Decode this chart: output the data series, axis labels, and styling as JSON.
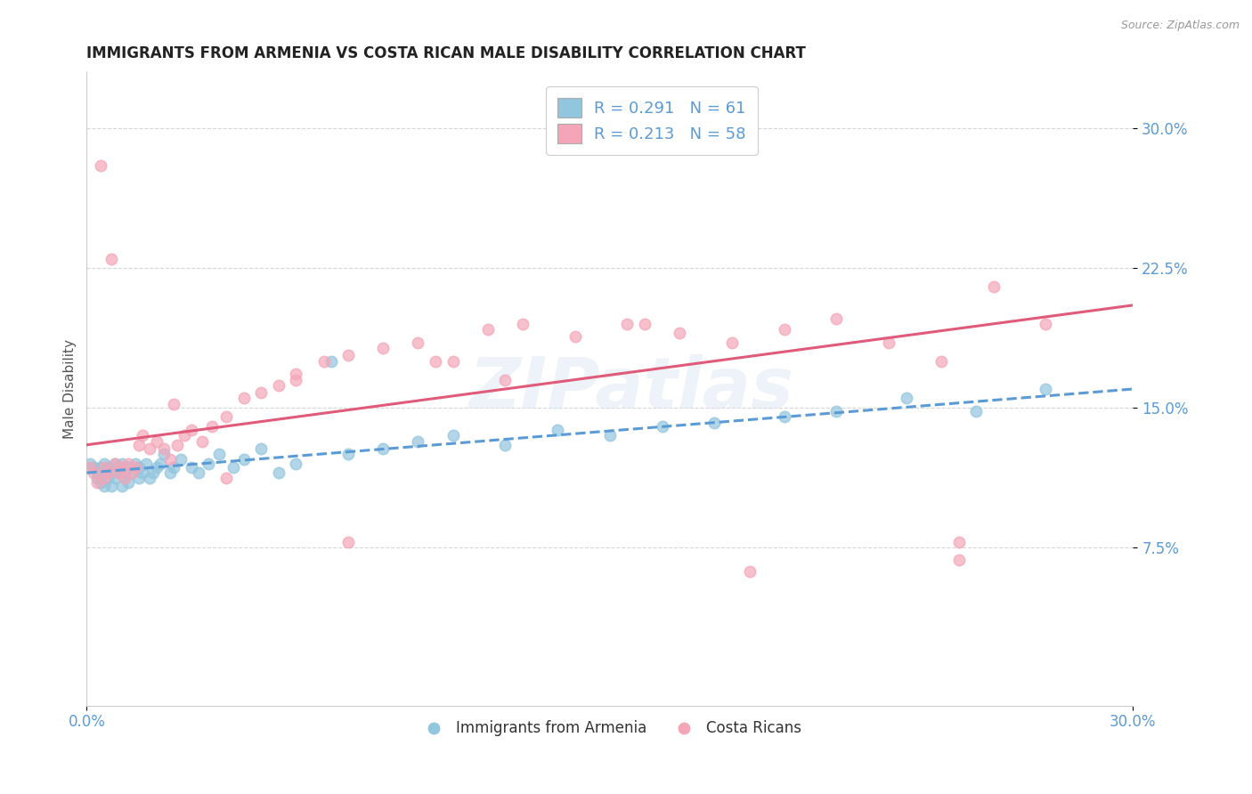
{
  "title": "IMMIGRANTS FROM ARMENIA VS COSTA RICAN MALE DISABILITY CORRELATION CHART",
  "source": "Source: ZipAtlas.com",
  "ylabel": "Male Disability",
  "legend_label_1": "Immigrants from Armenia",
  "legend_label_2": "Costa Ricans",
  "r1": 0.291,
  "n1": 61,
  "r2": 0.213,
  "n2": 58,
  "color_blue": "#92c5de",
  "color_pink": "#f4a6b8",
  "trend_blue": "#5b9bd5",
  "trend_pink": "#e05a7a",
  "axis_label_color": "#5b9bd5",
  "title_color": "#222222",
  "ytick_labels": [
    "7.5%",
    "15.0%",
    "22.5%",
    "30.0%"
  ],
  "ytick_values": [
    0.075,
    0.15,
    0.225,
    0.3
  ],
  "xlim": [
    0.0,
    0.3
  ],
  "ylim": [
    -0.01,
    0.33
  ],
  "blue_scatter_x": [
    0.001,
    0.002,
    0.003,
    0.003,
    0.004,
    0.004,
    0.005,
    0.005,
    0.005,
    0.006,
    0.006,
    0.007,
    0.007,
    0.008,
    0.008,
    0.009,
    0.009,
    0.01,
    0.01,
    0.011,
    0.011,
    0.012,
    0.012,
    0.013,
    0.014,
    0.015,
    0.015,
    0.016,
    0.017,
    0.018,
    0.019,
    0.02,
    0.021,
    0.022,
    0.024,
    0.025,
    0.027,
    0.03,
    0.032,
    0.035,
    0.038,
    0.042,
    0.045,
    0.05,
    0.055,
    0.06,
    0.07,
    0.075,
    0.085,
    0.095,
    0.105,
    0.12,
    0.135,
    0.15,
    0.165,
    0.18,
    0.2,
    0.215,
    0.235,
    0.255,
    0.275
  ],
  "blue_scatter_y": [
    0.12,
    0.118,
    0.115,
    0.112,
    0.118,
    0.11,
    0.115,
    0.108,
    0.12,
    0.112,
    0.118,
    0.115,
    0.108,
    0.12,
    0.112,
    0.115,
    0.118,
    0.12,
    0.108,
    0.115,
    0.112,
    0.118,
    0.11,
    0.115,
    0.12,
    0.112,
    0.118,
    0.115,
    0.12,
    0.112,
    0.115,
    0.118,
    0.12,
    0.125,
    0.115,
    0.118,
    0.122,
    0.118,
    0.115,
    0.12,
    0.125,
    0.118,
    0.122,
    0.128,
    0.115,
    0.12,
    0.175,
    0.125,
    0.128,
    0.132,
    0.135,
    0.13,
    0.138,
    0.135,
    0.14,
    0.142,
    0.145,
    0.148,
    0.155,
    0.148,
    0.16
  ],
  "pink_scatter_x": [
    0.001,
    0.002,
    0.003,
    0.004,
    0.005,
    0.005,
    0.006,
    0.007,
    0.008,
    0.009,
    0.01,
    0.011,
    0.012,
    0.013,
    0.014,
    0.015,
    0.016,
    0.018,
    0.02,
    0.022,
    0.024,
    0.026,
    0.028,
    0.03,
    0.033,
    0.036,
    0.04,
    0.045,
    0.05,
    0.055,
    0.06,
    0.068,
    0.075,
    0.085,
    0.095,
    0.105,
    0.115,
    0.125,
    0.14,
    0.155,
    0.17,
    0.185,
    0.2,
    0.215,
    0.23,
    0.245,
    0.26,
    0.275,
    0.06,
    0.1,
    0.12,
    0.16,
    0.19,
    0.25,
    0.025,
    0.04,
    0.075,
    0.25
  ],
  "pink_scatter_y": [
    0.118,
    0.115,
    0.11,
    0.28,
    0.118,
    0.112,
    0.115,
    0.23,
    0.12,
    0.115,
    0.118,
    0.112,
    0.12,
    0.115,
    0.118,
    0.13,
    0.135,
    0.128,
    0.132,
    0.128,
    0.122,
    0.13,
    0.135,
    0.138,
    0.132,
    0.14,
    0.145,
    0.155,
    0.158,
    0.162,
    0.168,
    0.175,
    0.178,
    0.182,
    0.185,
    0.175,
    0.192,
    0.195,
    0.188,
    0.195,
    0.19,
    0.185,
    0.192,
    0.198,
    0.185,
    0.175,
    0.215,
    0.195,
    0.165,
    0.175,
    0.165,
    0.195,
    0.062,
    0.068,
    0.152,
    0.112,
    0.078,
    0.078
  ]
}
